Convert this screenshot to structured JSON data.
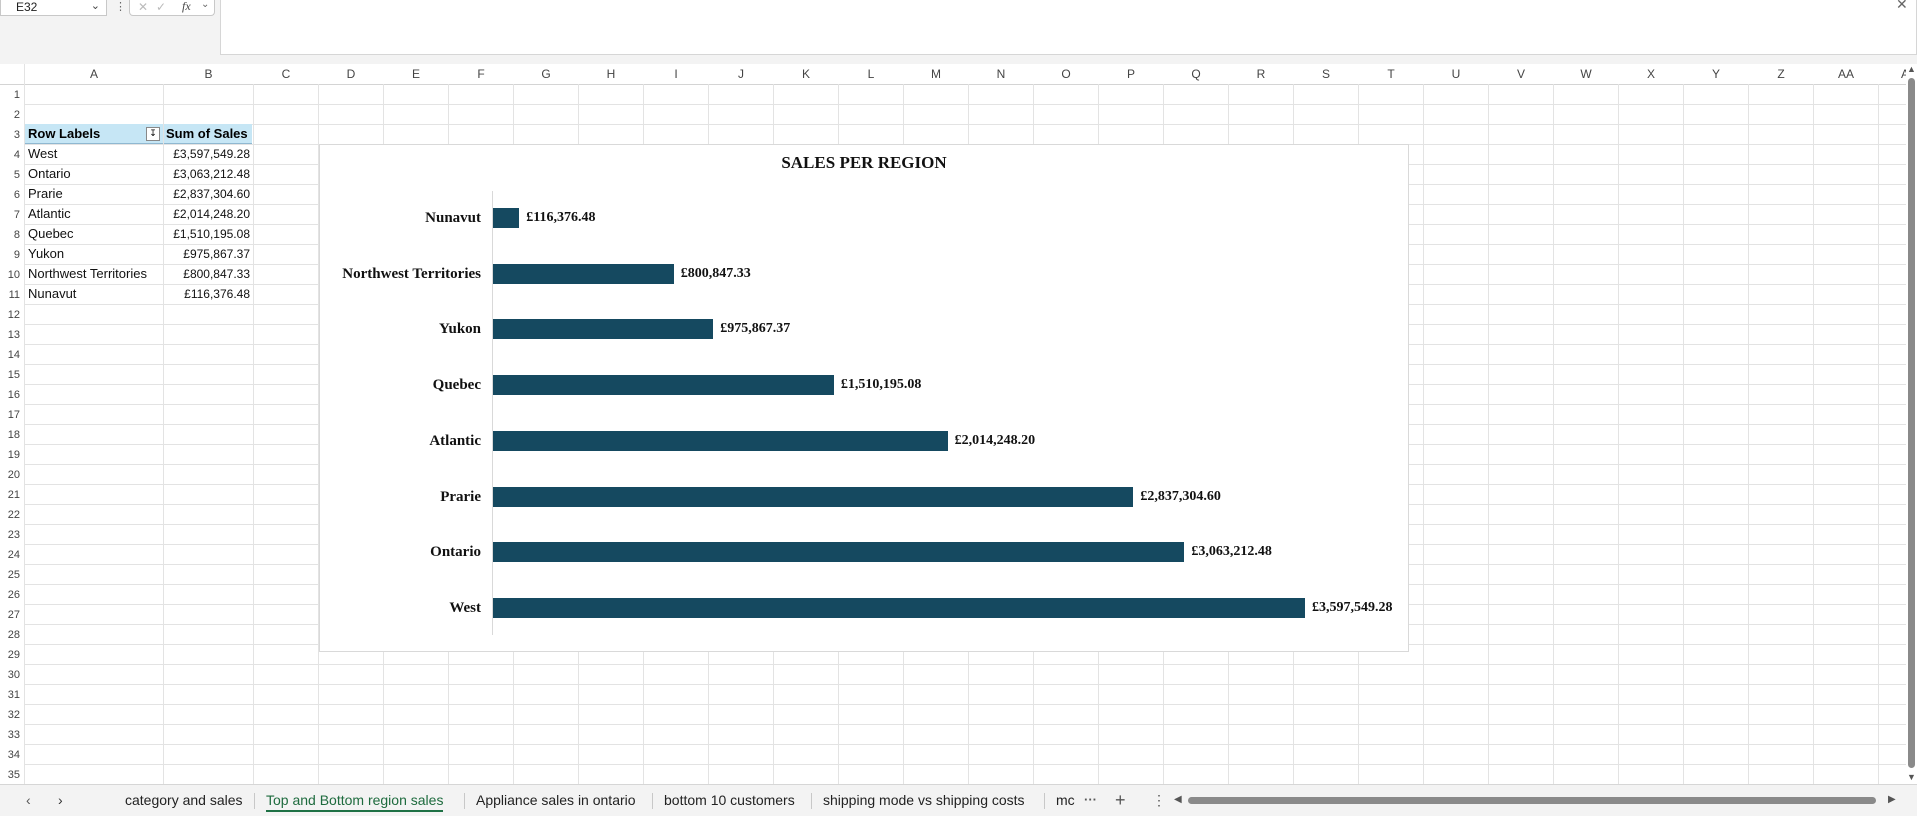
{
  "formula_bar": {
    "name_box": "E32",
    "fx": "fx"
  },
  "columns": [
    "A",
    "B",
    "C",
    "D",
    "E",
    "F",
    "G",
    "H",
    "I",
    "J",
    "K",
    "L",
    "M",
    "N",
    "O",
    "P",
    "Q",
    "R",
    "S",
    "T",
    "U",
    "V",
    "W",
    "X",
    "Y",
    "Z",
    "AA",
    "AB"
  ],
  "rows": [
    "1",
    "2",
    "3",
    "4",
    "5",
    "6",
    "7",
    "8",
    "9",
    "10",
    "11",
    "12",
    "13",
    "14",
    "15",
    "16",
    "17",
    "18",
    "19",
    "20",
    "21",
    "22",
    "23",
    "24",
    "25",
    "26",
    "27",
    "28",
    "29",
    "30",
    "31",
    "32",
    "33",
    "34",
    "35"
  ],
  "pivot": {
    "header_row_labels": "Row Labels",
    "header_sum": "Sum of Sales",
    "rows": [
      {
        "label": "West",
        "value": "£3,597,549.28"
      },
      {
        "label": "Ontario",
        "value": "£3,063,212.48"
      },
      {
        "label": "Prarie",
        "value": "£2,837,304.60"
      },
      {
        "label": "Atlantic",
        "value": "£2,014,248.20"
      },
      {
        "label": "Quebec",
        "value": "£1,510,195.08"
      },
      {
        "label": "Yukon",
        "value": "£975,867.37"
      },
      {
        "label": "Northwest Territories",
        "value": "£800,847.33"
      },
      {
        "label": "Nunavut",
        "value": "£116,376.48"
      }
    ]
  },
  "chart_data": {
    "type": "bar",
    "orientation": "horizontal",
    "title": "SALES PER REGION",
    "categories": [
      "Nunavut",
      "Northwest Territories",
      "Yukon",
      "Quebec",
      "Atlantic",
      "Prarie",
      "Ontario",
      "West"
    ],
    "values": [
      116376.48,
      800847.33,
      975867.37,
      1510195.08,
      2014248.2,
      2837304.6,
      3063212.48,
      3597549.28
    ],
    "data_labels": [
      "£116,376.48",
      "£800,847.33",
      "£975,867.37",
      "£1,510,195.08",
      "£2,014,248.20",
      "£2,837,304.60",
      "£3,063,212.48",
      "£3,597,549.28"
    ],
    "xlim": [
      0,
      3597549.28
    ],
    "bar_color": "#154960",
    "grid": false,
    "legend": "none"
  },
  "tabs": [
    {
      "label": "category and sales",
      "active": false
    },
    {
      "label": "Top and Bottom region sales",
      "active": true
    },
    {
      "label": "Appliance sales in ontario",
      "active": false
    },
    {
      "label": "bottom 10 customers",
      "active": false
    },
    {
      "label": "shipping mode vs shipping costs",
      "active": false
    },
    {
      "label": "mc",
      "active": false
    }
  ],
  "icons": {
    "prev": "chevron-left-icon",
    "next": "chevron-right-icon",
    "more": "ellipsis-icon",
    "add": "plus-icon",
    "options": "vertical-dots-icon"
  },
  "colors": {
    "accent": "#1e7145",
    "bar": "#154960",
    "pivot_header": "#c6e6f5"
  }
}
